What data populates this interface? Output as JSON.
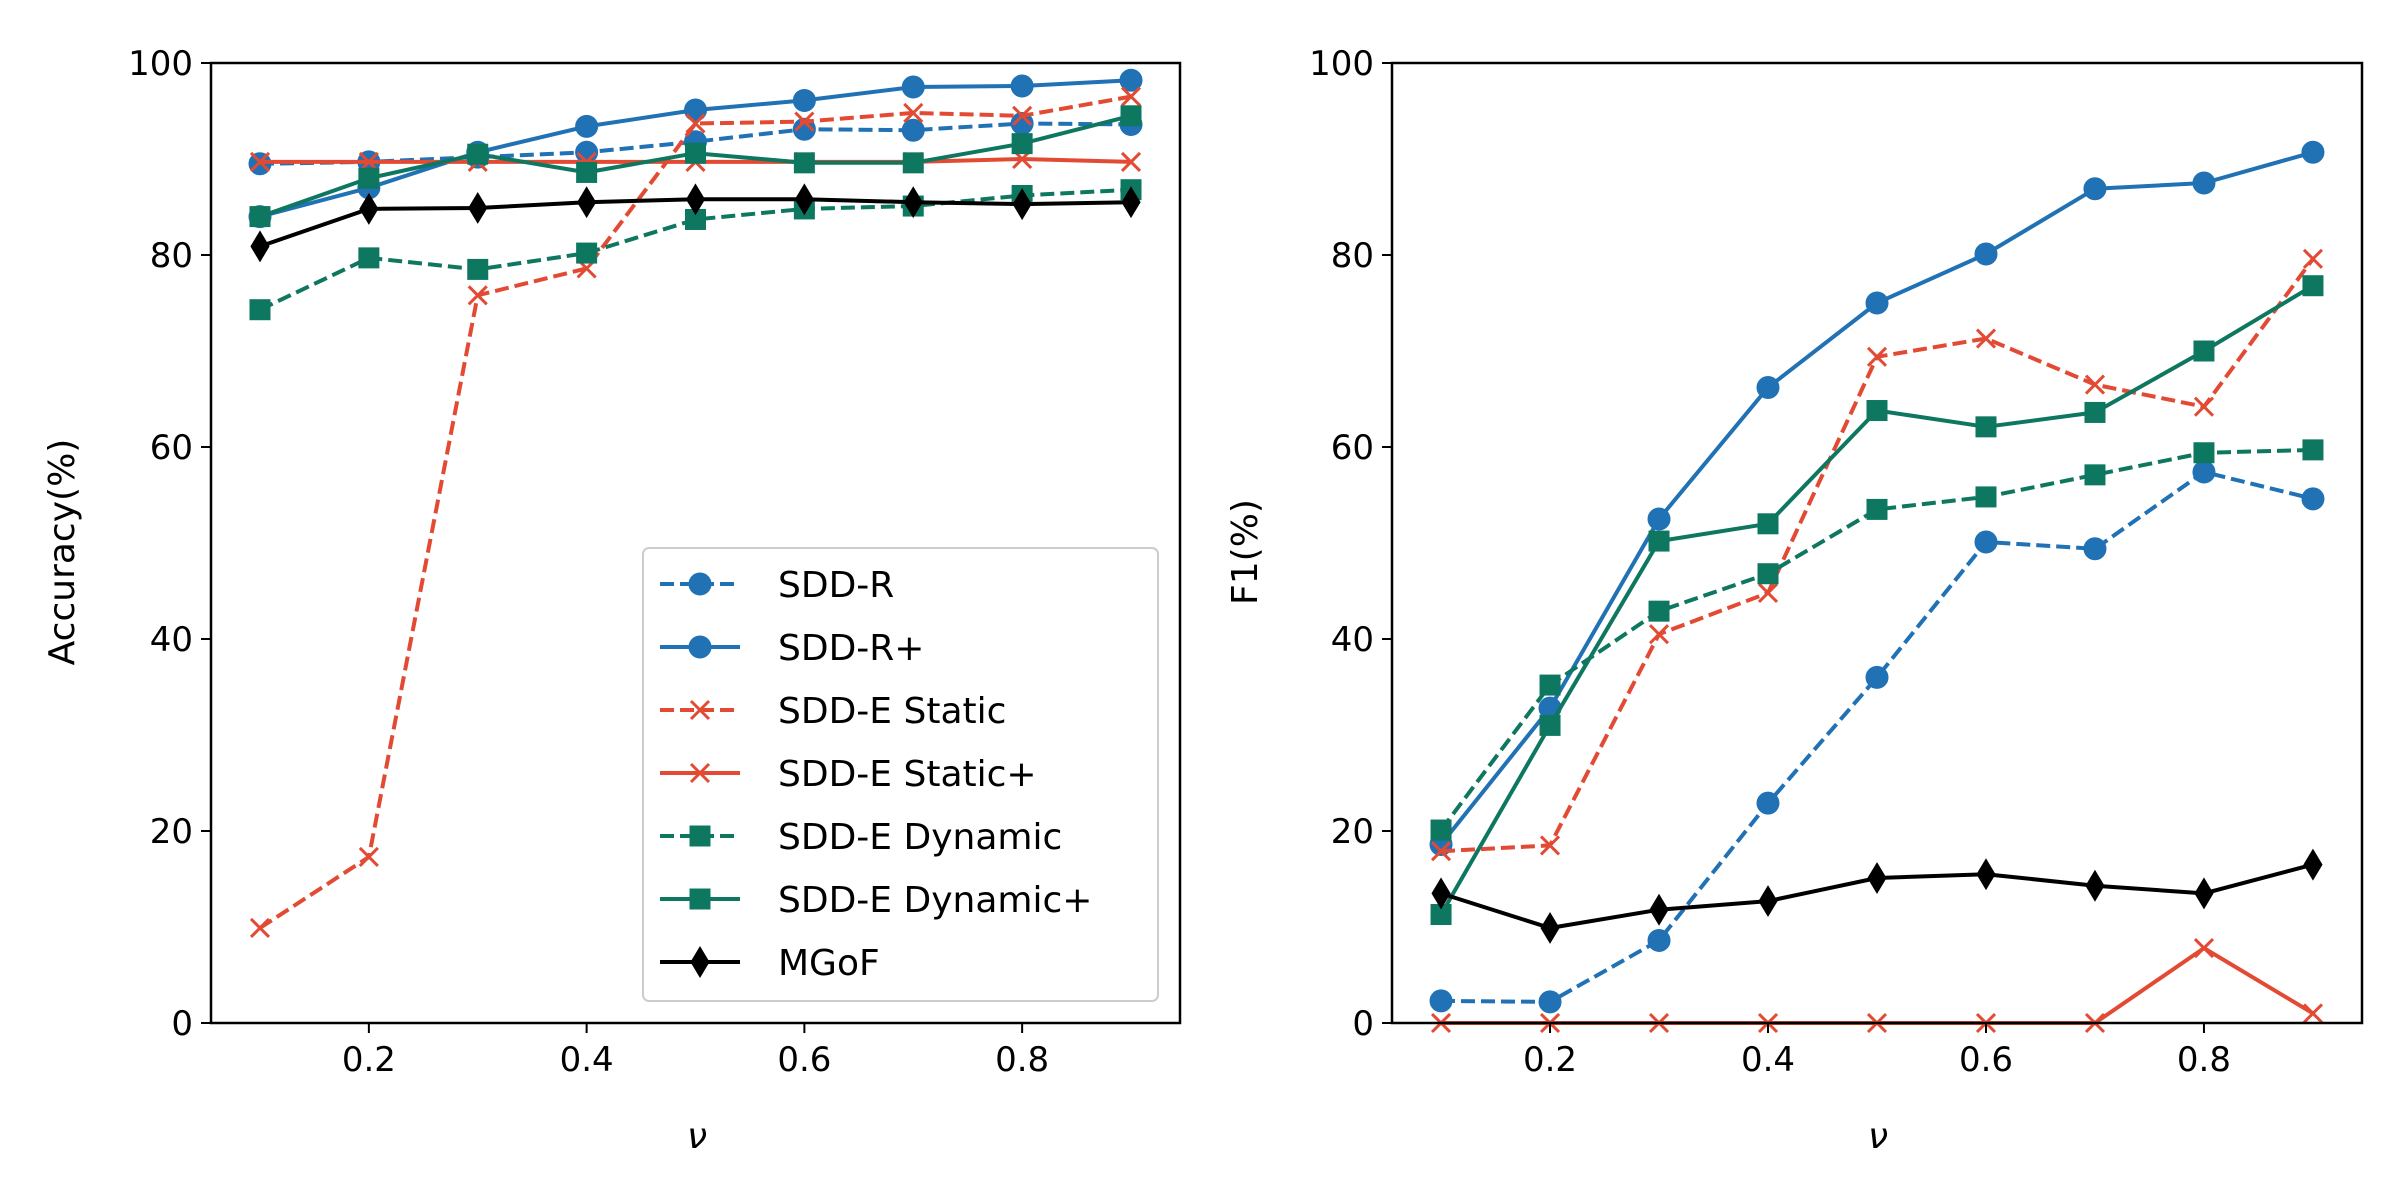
{
  "chart_data": [
    {
      "type": "line",
      "title": "",
      "xlabel": "ν",
      "ylabel": "Accuracy(%)",
      "xlim": [
        0.055,
        0.945
      ],
      "ylim": [
        0,
        100
      ],
      "xticks": [
        "0.2",
        "0.4",
        "0.6",
        "0.8"
      ],
      "yticks": [
        "0",
        "20",
        "40",
        "60",
        "80",
        "100"
      ],
      "legend": "lower-right",
      "grid": false,
      "x": [
        0.1,
        0.2,
        0.3,
        0.4,
        0.5,
        0.6,
        0.7,
        0.8,
        0.9
      ],
      "series": [
        {
          "name": "SDD-R",
          "values": [
            89.5,
            89.7,
            90.2,
            90.7,
            91.8,
            93.1,
            93.0,
            93.7,
            93.6
          ]
        },
        {
          "name": "SDD-R+",
          "values": [
            84.0,
            87.0,
            90.7,
            93.4,
            95.1,
            96.1,
            97.5,
            97.6,
            98.2
          ]
        },
        {
          "name": "SDD-E Static",
          "values": [
            9.9,
            17.3,
            75.8,
            78.6,
            93.7,
            93.9,
            94.8,
            94.5,
            96.5
          ]
        },
        {
          "name": "SDD-E Static+",
          "values": [
            89.7,
            89.7,
            89.7,
            89.7,
            89.7,
            89.7,
            89.7,
            90.0,
            89.7
          ]
        },
        {
          "name": "SDD-E Dynamic",
          "values": [
            74.3,
            79.7,
            78.5,
            80.2,
            83.7,
            84.8,
            85.1,
            86.2,
            86.8
          ]
        },
        {
          "name": "SDD-E Dynamic+",
          "values": [
            84.0,
            88.0,
            90.5,
            88.6,
            90.6,
            89.6,
            89.6,
            91.6,
            94.5
          ]
        },
        {
          "name": "MGoF",
          "values": [
            80.9,
            84.8,
            84.9,
            85.5,
            85.8,
            85.8,
            85.5,
            85.3,
            85.5
          ]
        }
      ]
    },
    {
      "type": "line",
      "title": "",
      "xlabel": "ν",
      "ylabel": "F1(%)",
      "xlim": [
        0.055,
        0.945
      ],
      "ylim": [
        0,
        100
      ],
      "xticks": [
        "0.2",
        "0.4",
        "0.6",
        "0.8"
      ],
      "yticks": [
        "0",
        "20",
        "40",
        "60",
        "80",
        "100"
      ],
      "grid": false,
      "x": [
        0.1,
        0.2,
        0.3,
        0.4,
        0.5,
        0.6,
        0.7,
        0.8,
        0.9
      ],
      "series": [
        {
          "name": "SDD-R",
          "values": [
            2.3,
            2.2,
            8.6,
            22.9,
            36.0,
            50.1,
            49.4,
            57.4,
            54.6
          ]
        },
        {
          "name": "SDD-R+",
          "values": [
            18.6,
            32.8,
            52.5,
            66.2,
            75.0,
            80.1,
            86.9,
            87.5,
            90.7
          ]
        },
        {
          "name": "SDD-E Static",
          "values": [
            17.9,
            18.5,
            40.5,
            44.8,
            69.4,
            71.3,
            66.5,
            64.2,
            79.6
          ]
        },
        {
          "name": "SDD-E Static+",
          "values": [
            0.0,
            0.0,
            0.0,
            0.0,
            0.0,
            0.0,
            0.0,
            7.8,
            1.0
          ]
        },
        {
          "name": "SDD-E Dynamic",
          "values": [
            20.1,
            35.2,
            42.9,
            46.8,
            53.5,
            54.8,
            57.1,
            59.4,
            59.7
          ]
        },
        {
          "name": "SDD-E Dynamic+",
          "values": [
            11.3,
            31.0,
            50.2,
            52.0,
            63.8,
            62.1,
            63.6,
            70.0,
            76.8
          ]
        },
        {
          "name": "MGoF",
          "values": [
            13.5,
            9.9,
            11.8,
            12.7,
            15.1,
            15.5,
            14.3,
            13.5,
            16.5
          ]
        }
      ]
    }
  ],
  "styles": {
    "SDD-R": {
      "color": "#2171b5",
      "dash": "dashed",
      "marker": "circle"
    },
    "SDD-R+": {
      "color": "#2171b5",
      "dash": "solid",
      "marker": "circle"
    },
    "SDD-E Static": {
      "color": "#e34a33",
      "dash": "dashed",
      "marker": "x"
    },
    "SDD-E Static+": {
      "color": "#e34a33",
      "dash": "solid",
      "marker": "x"
    },
    "SDD-E Dynamic": {
      "color": "#0e7760",
      "dash": "dashed",
      "marker": "square"
    },
    "SDD-E Dynamic+": {
      "color": "#0e7760",
      "dash": "solid",
      "marker": "square"
    },
    "MGoF": {
      "color": "#000000",
      "dash": "solid",
      "marker": "diamond"
    }
  }
}
